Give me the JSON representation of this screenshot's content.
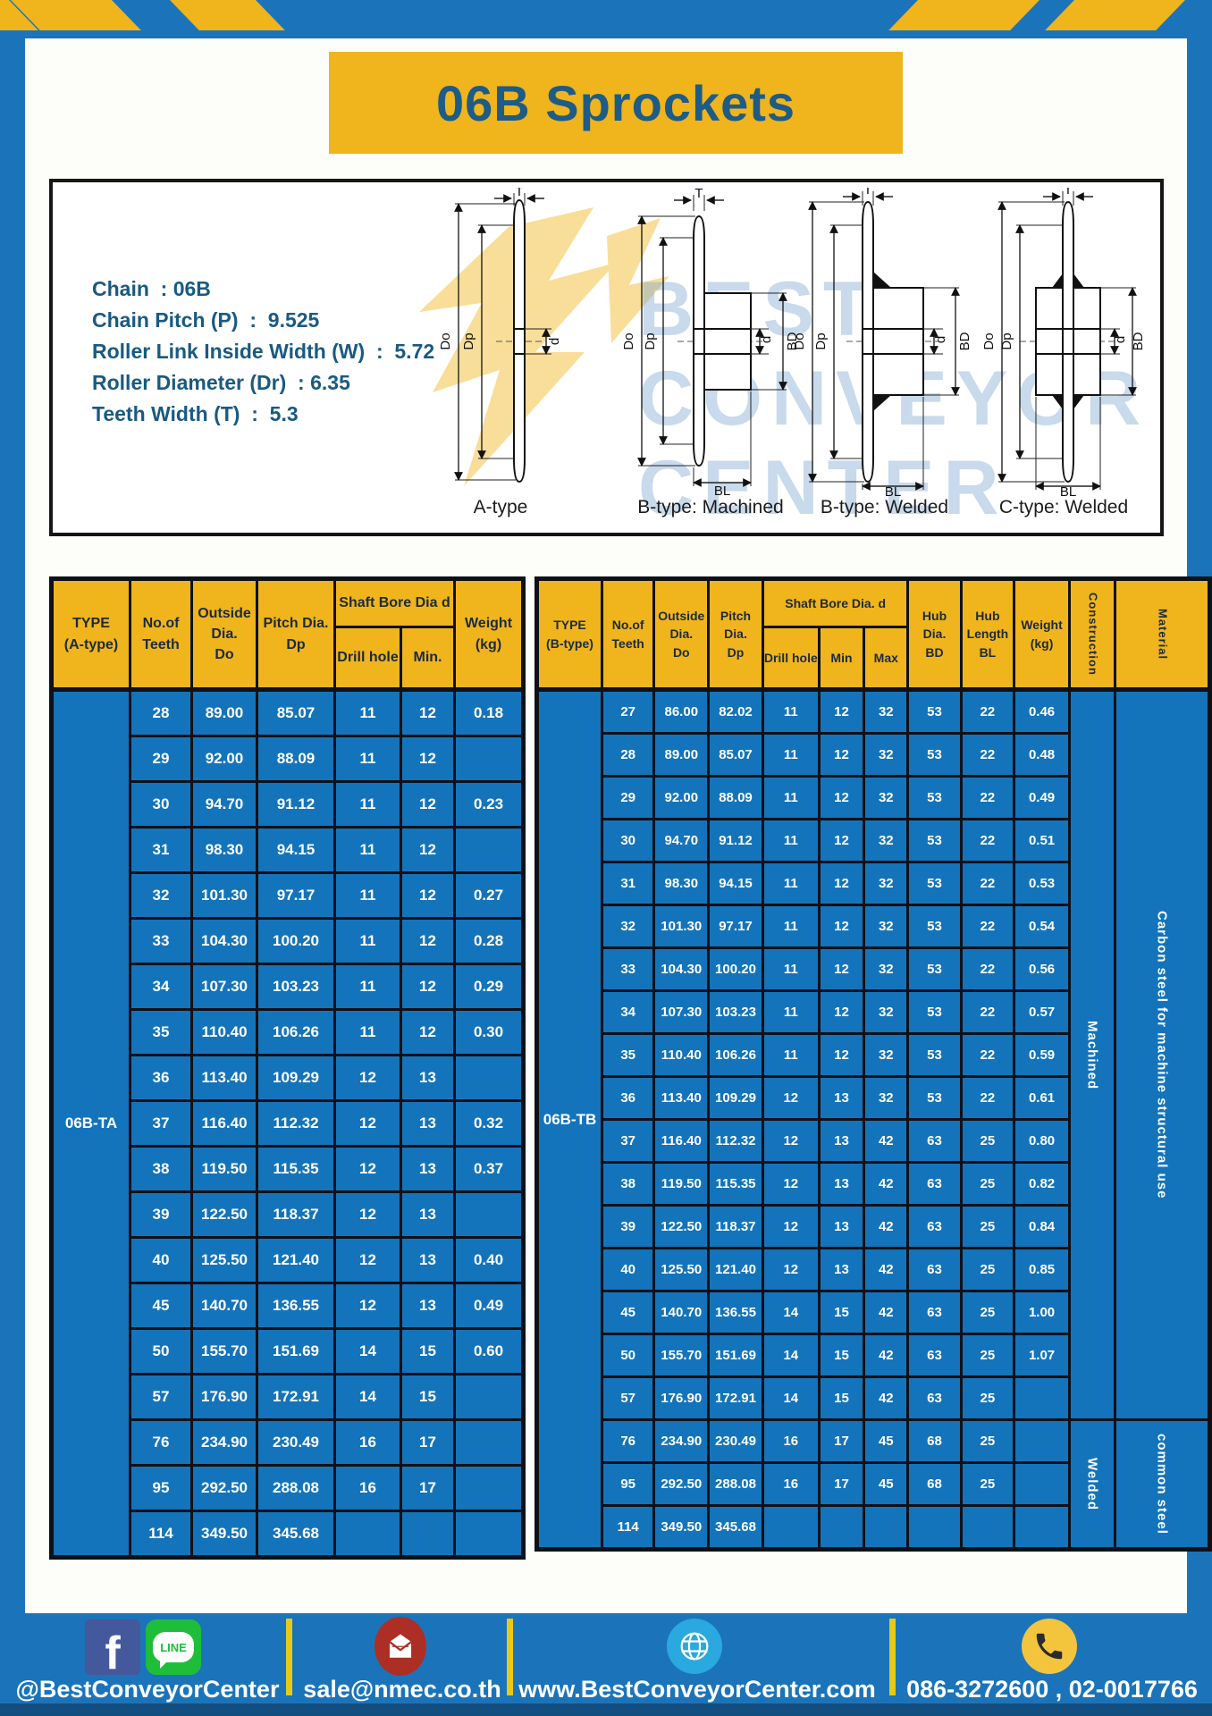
{
  "page": {
    "title": "06B Sprockets"
  },
  "colors": {
    "frame_blue": "#1b74b9",
    "table_blue": "#1474bb",
    "accent_yellow": "#f0b41c",
    "title_text_blue": "#1d5c86",
    "border_black": "#0e1118"
  },
  "diagram": {
    "specs": [
      "Chain  : 06B",
      "Chain Pitch (P)  :  9.525",
      "Roller Link Inside Width (W)  :  5.72",
      "Roller Diameter (Dr)  : 6.35",
      "Teeth Width (T)  :  5.3"
    ],
    "watermark": "BEST\nCONVEYOR\nCENTER",
    "figures": [
      {
        "label": "A-type",
        "dims": {
          "t": "T",
          "do": "Do",
          "dp": "Dp",
          "d": "d"
        }
      },
      {
        "label": "B-type: Machined",
        "dims": {
          "t": "T",
          "do": "Do",
          "dp": "Dp",
          "d": "d",
          "bd": "BD",
          "bl": "BL"
        }
      },
      {
        "label": "B-type: Welded",
        "dims": {
          "t": "T",
          "do": "Do",
          "dp": "Dp",
          "d": "d",
          "bd": "BD",
          "bl": "BL"
        }
      },
      {
        "label": "C-type: Welded",
        "dims": {
          "t": "T",
          "do": "Do",
          "dp": "Dp",
          "d": "d",
          "bd": "BD",
          "bl": "BL"
        }
      }
    ]
  },
  "left_table": {
    "type_label": "06B-TA",
    "headers": {
      "type": "TYPE\n(A-type)",
      "teeth": "No.of\nTeeth",
      "od": "Outside\nDia.\nDo",
      "pd": "Pitch Dia.\nDp",
      "shaft_bore": "Shaft Bore Dia d",
      "drill": "Drill hole",
      "min": "Min.",
      "weight": "Weight\n(kg)"
    },
    "rows": [
      [
        "28",
        "89.00",
        "85.07",
        "11",
        "12",
        "0.18"
      ],
      [
        "29",
        "92.00",
        "88.09",
        "11",
        "12",
        ""
      ],
      [
        "30",
        "94.70",
        "91.12",
        "11",
        "12",
        "0.23"
      ],
      [
        "31",
        "98.30",
        "94.15",
        "11",
        "12",
        ""
      ],
      [
        "32",
        "101.30",
        "97.17",
        "11",
        "12",
        "0.27"
      ],
      [
        "33",
        "104.30",
        "100.20",
        "11",
        "12",
        "0.28"
      ],
      [
        "34",
        "107.30",
        "103.23",
        "11",
        "12",
        "0.29"
      ],
      [
        "35",
        "110.40",
        "106.26",
        "11",
        "12",
        "0.30"
      ],
      [
        "36",
        "113.40",
        "109.29",
        "12",
        "13",
        ""
      ],
      [
        "37",
        "116.40",
        "112.32",
        "12",
        "13",
        "0.32"
      ],
      [
        "38",
        "119.50",
        "115.35",
        "12",
        "13",
        "0.37"
      ],
      [
        "39",
        "122.50",
        "118.37",
        "12",
        "13",
        ""
      ],
      [
        "40",
        "125.50",
        "121.40",
        "12",
        "13",
        "0.40"
      ],
      [
        "45",
        "140.70",
        "136.55",
        "12",
        "13",
        "0.49"
      ],
      [
        "50",
        "155.70",
        "151.69",
        "14",
        "15",
        "0.60"
      ],
      [
        "57",
        "176.90",
        "172.91",
        "14",
        "15",
        ""
      ],
      [
        "76",
        "234.90",
        "230.49",
        "16",
        "17",
        ""
      ],
      [
        "95",
        "292.50",
        "288.08",
        "16",
        "17",
        ""
      ],
      [
        "114",
        "349.50",
        "345.68",
        "",
        "",
        ""
      ]
    ]
  },
  "right_table": {
    "type_label": "06B-TB",
    "headers": {
      "type": "TYPE\n(B-type)",
      "teeth": "No.of\nTeeth",
      "od": "Outside\nDia.\nDo",
      "pd": "Pitch\nDia.\nDp",
      "shaft_bore": "Shaft Bore Dia. d",
      "drill": "Drill hole",
      "min": "Min",
      "max": "Max",
      "bd": "Hub\nDia.\nBD",
      "bl": "Hub\nLength\nBL",
      "weight": "Weight\n(kg)",
      "construction": "Construction",
      "material": "Material"
    },
    "rows": [
      [
        "27",
        "86.00",
        "82.02",
        "11",
        "12",
        "32",
        "53",
        "22",
        "0.46"
      ],
      [
        "28",
        "89.00",
        "85.07",
        "11",
        "12",
        "32",
        "53",
        "22",
        "0.48"
      ],
      [
        "29",
        "92.00",
        "88.09",
        "11",
        "12",
        "32",
        "53",
        "22",
        "0.49"
      ],
      [
        "30",
        "94.70",
        "91.12",
        "11",
        "12",
        "32",
        "53",
        "22",
        "0.51"
      ],
      [
        "31",
        "98.30",
        "94.15",
        "11",
        "12",
        "32",
        "53",
        "22",
        "0.53"
      ],
      [
        "32",
        "101.30",
        "97.17",
        "11",
        "12",
        "32",
        "53",
        "22",
        "0.54"
      ],
      [
        "33",
        "104.30",
        "100.20",
        "11",
        "12",
        "32",
        "53",
        "22",
        "0.56"
      ],
      [
        "34",
        "107.30",
        "103.23",
        "11",
        "12",
        "32",
        "53",
        "22",
        "0.57"
      ],
      [
        "35",
        "110.40",
        "106.26",
        "11",
        "12",
        "32",
        "53",
        "22",
        "0.59"
      ],
      [
        "36",
        "113.40",
        "109.29",
        "12",
        "13",
        "32",
        "53",
        "22",
        "0.61"
      ],
      [
        "37",
        "116.40",
        "112.32",
        "12",
        "13",
        "42",
        "63",
        "25",
        "0.80"
      ],
      [
        "38",
        "119.50",
        "115.35",
        "12",
        "13",
        "42",
        "63",
        "25",
        "0.82"
      ],
      [
        "39",
        "122.50",
        "118.37",
        "12",
        "13",
        "42",
        "63",
        "25",
        "0.84"
      ],
      [
        "40",
        "125.50",
        "121.40",
        "12",
        "13",
        "42",
        "63",
        "25",
        "0.85"
      ],
      [
        "45",
        "140.70",
        "136.55",
        "14",
        "15",
        "42",
        "63",
        "25",
        "1.00"
      ],
      [
        "50",
        "155.70",
        "151.69",
        "14",
        "15",
        "42",
        "63",
        "25",
        "1.07"
      ],
      [
        "57",
        "176.90",
        "172.91",
        "14",
        "15",
        "42",
        "63",
        "25",
        ""
      ],
      [
        "76",
        "234.90",
        "230.49",
        "16",
        "17",
        "45",
        "68",
        "25",
        ""
      ],
      [
        "95",
        "292.50",
        "288.08",
        "16",
        "17",
        "45",
        "68",
        "25",
        ""
      ],
      [
        "114",
        "349.50",
        "345.68",
        "",
        "",
        "",
        "",
        "",
        ""
      ]
    ],
    "construction_groups": [
      {
        "label": "Machined",
        "span": 17
      },
      {
        "label": "Welded",
        "span": 3
      }
    ],
    "material_groups": [
      {
        "label": "Carbon steel for machine structural use",
        "span": 17
      },
      {
        "label": "common steel",
        "span": 3
      }
    ]
  },
  "footer": {
    "facebook_icon_letter": "f",
    "line_icon_text": "LINE",
    "social_handle": "@BestConveyorCenter",
    "email": "sale@nmec.co.th",
    "website": "www.BestConveyorCenter.com",
    "phones": "086-3272600 , 02-0017766"
  }
}
